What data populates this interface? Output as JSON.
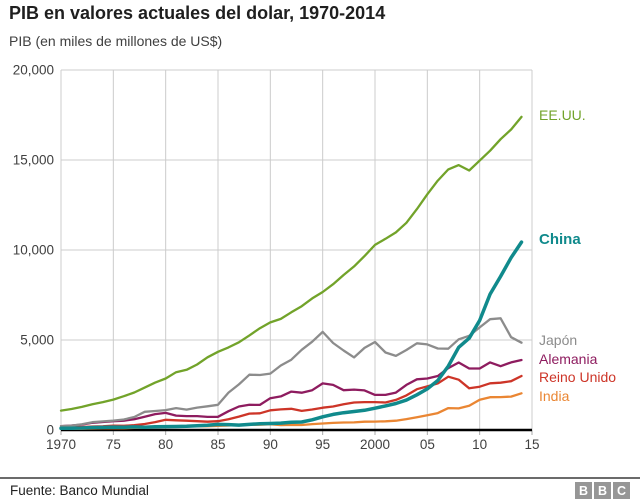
{
  "header": {
    "title": "PIB en valores actuales del dolar, 1970-2014",
    "subtitle": "PIB (en miles de millones de US$)"
  },
  "footer": {
    "source": "Fuente: Banco Mundial",
    "logo": [
      "B",
      "B",
      "C"
    ]
  },
  "colors": {
    "grid": "#cccccc",
    "tick": "#aaaaaa",
    "axis_text": "#404040",
    "zero_line": "#000000",
    "divider": "#6b6b6b",
    "logo_gray": "#969696"
  },
  "chart_data": {
    "type": "line",
    "title": "PIB en valores actuales del dolar, 1970-2014",
    "ylabel": "PIB (en miles de millones de US$)",
    "xlabel": "",
    "grid": true,
    "legend_position": "right-edge-labels",
    "xlim": [
      1970,
      2015
    ],
    "ylim": [
      0,
      20000
    ],
    "x_start_year": 1970,
    "x_end_year": 2014,
    "x_tick_labels": [
      "1970",
      "75",
      "80",
      "85",
      "90",
      "95",
      "2000",
      "05",
      "10",
      "15"
    ],
    "x_tick_years": [
      1970,
      1975,
      1980,
      1985,
      1990,
      1995,
      2000,
      2005,
      2010,
      2015
    ],
    "y_tick_labels": [
      "0",
      "5,000",
      "10,000",
      "15,000",
      "20,000"
    ],
    "y_tick_values": [
      0,
      5000,
      10000,
      15000,
      20000
    ],
    "series": [
      {
        "id": "india",
        "name": "India",
        "color": "#ea8633",
        "emphasis": false,
        "values": [
          62,
          67,
          71,
          85,
          99,
          98,
          102,
          120,
          137,
          152,
          186,
          193,
          200,
          218,
          212,
          232,
          248,
          279,
          296,
          296,
          321,
          270,
          288,
          279,
          327,
          360,
          393,
          416,
          421,
          459,
          468,
          485,
          515,
          607,
          709,
          820,
          940,
          1217,
          1199,
          1342,
          1676,
          1823,
          1828,
          1857,
          2039
        ]
      },
      {
        "id": "reino-unido",
        "name": "Reino Unido",
        "color": "#cd3528",
        "emphasis": false,
        "values": [
          131,
          148,
          169,
          192,
          206,
          241,
          233,
          264,
          336,
          439,
          565,
          541,
          516,
          490,
          462,
          489,
          601,
          746,
          910,
          927,
          1093,
          1143,
          1179,
          1062,
          1140,
          1237,
          1303,
          1436,
          1527,
          1552,
          1548,
          1530,
          1672,
          1925,
          2268,
          2421,
          2588,
          2960,
          2794,
          2314,
          2403,
          2592,
          2630,
          2712,
          2999
        ]
      },
      {
        "id": "alemania",
        "name": "Alemania",
        "color": "#8e1c5f",
        "emphasis": false,
        "values": [
          216,
          250,
          299,
          398,
          445,
          489,
          519,
          599,
          740,
          881,
          950,
          800,
          771,
          770,
          726,
          732,
          1047,
          1307,
          1401,
          1393,
          1765,
          1869,
          2132,
          2072,
          2210,
          2591,
          2503,
          2213,
          2243,
          2199,
          1950,
          1951,
          2079,
          2506,
          2819,
          2861,
          3002,
          3440,
          3752,
          3418,
          3417,
          3758,
          3544,
          3753,
          3890
        ]
      },
      {
        "id": "japon",
        "name": "Japón",
        "color": "#8c8c8c",
        "emphasis": false,
        "values": [
          212,
          240,
          318,
          432,
          479,
          521,
          586,
          721,
          1013,
          1055,
          1105,
          1218,
          1134,
          1243,
          1318,
          1398,
          2078,
          2532,
          3071,
          3054,
          3132,
          3584,
          3908,
          4454,
          4907,
          5449,
          4833,
          4414,
          4032,
          4562,
          4887,
          4303,
          4115,
          4445,
          4815,
          4755,
          4530,
          4515,
          5038,
          5231,
          5700,
          6157,
          6203,
          5156,
          4850
        ]
      },
      {
        "id": "eeuu",
        "name": "EE.UU.",
        "color": "#72a32a",
        "emphasis": false,
        "values": [
          1076,
          1168,
          1282,
          1429,
          1549,
          1689,
          1878,
          2086,
          2357,
          2632,
          2863,
          3211,
          3345,
          3638,
          4041,
          4347,
          4590,
          4870,
          5253,
          5658,
          5980,
          6174,
          6539,
          6879,
          7309,
          7664,
          8100,
          8609,
          9089,
          9661,
          10285,
          10622,
          10978,
          11511,
          12275,
          13094,
          13856,
          14478,
          14719,
          14419,
          14964,
          15518,
          16155,
          16692,
          17393
        ]
      },
      {
        "id": "china",
        "name": "China",
        "color": "#108a8c",
        "emphasis": true,
        "values": [
          93,
          99,
          113,
          138,
          144,
          163,
          154,
          175,
          149,
          178,
          191,
          196,
          205,
          231,
          260,
          309,
          301,
          273,
          312,
          348,
          361,
          383,
          427,
          445,
          564,
          734,
          864,
          962,
          1029,
          1094,
          1211,
          1339,
          1471,
          1660,
          1955,
          2286,
          2752,
          3550,
          4594,
          5102,
          6087,
          7552,
          8532,
          9570,
          10439
        ]
      }
    ]
  }
}
